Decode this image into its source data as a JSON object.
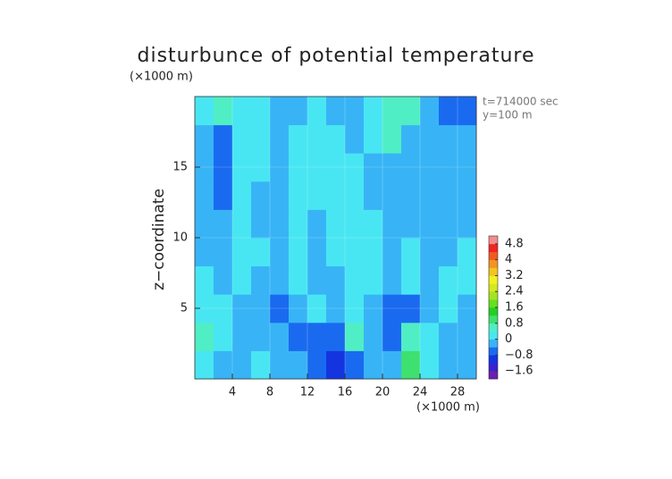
{
  "chart_data": {
    "type": "heatmap",
    "title": "disturbunce of potential temperature",
    "y_unit_label": "(×1000 m)",
    "x_unit_label": "(×1000 m)",
    "ylabel": "z−coordinate",
    "annotations": [
      "t=714000 sec",
      "y=100 m"
    ],
    "xlim": [
      0,
      30
    ],
    "ylim": [
      0,
      20
    ],
    "xticks": [
      4,
      8,
      12,
      16,
      20,
      24,
      28
    ],
    "yticks": [
      5,
      10,
      15
    ],
    "x": [
      1,
      3,
      5,
      7,
      9,
      11,
      13,
      15,
      17,
      19,
      21,
      23,
      25,
      27,
      29
    ],
    "y": [
      1,
      3,
      5,
      7,
      9,
      11,
      13,
      15,
      17,
      19
    ],
    "z": [
      [
        0.3,
        -0.2,
        -0.1,
        0.2,
        -0.3,
        -0.2,
        -0.6,
        -0.9,
        -0.5,
        -0.2,
        -0.4,
        0.8,
        0.2,
        -0.3,
        -0.2
      ],
      [
        0.7,
        0.3,
        -0.2,
        -0.4,
        -0.2,
        -0.5,
        -0.7,
        -0.6,
        0.4,
        -0.3,
        -0.5,
        0.5,
        0.3,
        -0.2,
        -0.3
      ],
      [
        0.3,
        0.2,
        -0.2,
        -0.3,
        -0.5,
        -0.3,
        0.1,
        -0.2,
        0.2,
        -0.3,
        -0.5,
        -0.6,
        -0.4,
        0.1,
        -0.1
      ],
      [
        0.1,
        -0.2,
        0.1,
        -0.1,
        -0.2,
        0.2,
        -0.2,
        -0.3,
        0.2,
        0.3,
        -0.2,
        0.2,
        -0.2,
        0.1,
        0.1
      ],
      [
        -0.1,
        -0.3,
        0.2,
        0.0,
        -0.3,
        0.2,
        -0.2,
        0.2,
        0.3,
        0.2,
        -0.1,
        0.1,
        -0.2,
        -0.1,
        0.2
      ],
      [
        -0.1,
        -0.4,
        0.1,
        -0.1,
        -0.2,
        0.2,
        -0.2,
        0.3,
        0.2,
        0.1,
        -0.2,
        -0.1,
        -0.3,
        -0.2,
        -0.1
      ],
      [
        -0.2,
        -0.5,
        0.1,
        -0.2,
        -0.3,
        0.2,
        0.1,
        0.3,
        0.2,
        -0.1,
        -0.2,
        -0.1,
        -0.2,
        -0.2,
        -0.2
      ],
      [
        -0.3,
        -0.6,
        0.2,
        0.1,
        -0.3,
        0.3,
        0.3,
        0.3,
        0.2,
        -0.2,
        -0.3,
        -0.2,
        -0.2,
        -0.3,
        -0.3
      ],
      [
        -0.1,
        -0.5,
        0.1,
        0.2,
        -0.2,
        0.2,
        0.3,
        0.2,
        -0.2,
        0.1,
        0.4,
        -0.2,
        -0.2,
        -0.3,
        -0.4
      ],
      [
        0.2,
        0.6,
        0.3,
        0.1,
        -0.2,
        -0.1,
        0.1,
        -0.2,
        -0.3,
        0.2,
        0.7,
        0.5,
        -0.3,
        -0.6,
        -0.7
      ]
    ],
    "levels": [
      -2.0,
      -1.6,
      -1.2,
      -0.8,
      -0.4,
      0,
      0.4,
      0.8,
      1.2,
      1.6,
      2.0,
      2.4,
      2.8,
      3.2,
      3.6,
      4.0,
      4.4,
      4.8,
      5.2
    ],
    "colors": [
      "#6a1fb0",
      "#3a22d0",
      "#1434e0",
      "#1a6af0",
      "#38b4f6",
      "#48e6f2",
      "#50eec4",
      "#3ee070",
      "#22d022",
      "#64e020",
      "#a4e420",
      "#d4e820",
      "#f2f020",
      "#f2c420",
      "#f29420",
      "#f25a20",
      "#f02424",
      "#f48c8c"
    ],
    "colorbar_ticks": [
      {
        "value": -1.6,
        "label": "−1.6"
      },
      {
        "value": -0.8,
        "label": "−0.8"
      },
      0,
      0.8,
      1.6,
      2.4,
      3.2,
      4,
      4.8
    ],
    "grid": true
  }
}
